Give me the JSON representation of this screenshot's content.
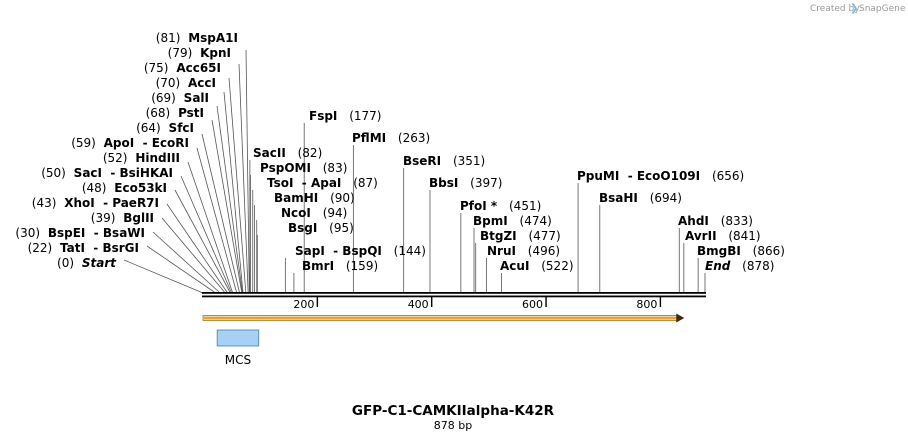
{
  "credit": {
    "prefix": "Created by",
    "brand": "SnapGene"
  },
  "colors": {
    "orf_fill": "#f2d296",
    "orf_stroke": "#a87a1e",
    "orf_arrow": "#e3901e",
    "feature_fill": "#a6d1f5",
    "feature_stroke": "#4a7fa8",
    "line": "#555555",
    "backbone": "#000000"
  },
  "ruler": {
    "total_bp": 878,
    "ticks": [
      "200",
      "400",
      "600",
      "800"
    ]
  },
  "sites": [
    {
      "name": "Start",
      "pos": "(0)",
      "bp": 0,
      "italic": true
    },
    {
      "name": "TatI  - BsrGI",
      "pos": "(22)",
      "bp": 22
    },
    {
      "name": "BspEI  - BsaWI",
      "pos": "(30)",
      "bp": 30
    },
    {
      "name": "BglII",
      "pos": "(39)",
      "bp": 39
    },
    {
      "name": "XhoI  - PaeR7I",
      "pos": "(43)",
      "bp": 43
    },
    {
      "name": "Eco53kI",
      "pos": "(48)",
      "bp": 48
    },
    {
      "name": "SacI  - BsiHKAI",
      "pos": "(50)",
      "bp": 50
    },
    {
      "name": "HindIII",
      "pos": "(52)",
      "bp": 52
    },
    {
      "name": "ApoI  - EcoRI",
      "pos": "(59)",
      "bp": 59
    },
    {
      "name": "SfcI",
      "pos": "(64)",
      "bp": 64
    },
    {
      "name": "PstI",
      "pos": "(68)",
      "bp": 68
    },
    {
      "name": "SalI",
      "pos": "(69)",
      "bp": 69
    },
    {
      "name": "AccI",
      "pos": "(70)",
      "bp": 70
    },
    {
      "name": "Acc65I",
      "pos": "(75)",
      "bp": 75
    },
    {
      "name": "KpnI",
      "pos": "(79)",
      "bp": 79
    },
    {
      "name": "MspA1I",
      "pos": "(81)",
      "bp": 81
    },
    {
      "name": "SacII",
      "pos": "(82)",
      "bp": 82
    },
    {
      "name": "PspOMI",
      "pos": "(83)",
      "bp": 83
    },
    {
      "name": "TsoI  - ApaI",
      "pos": "(87)",
      "bp": 87
    },
    {
      "name": "BamHI",
      "pos": "(90)",
      "bp": 90
    },
    {
      "name": "NcoI",
      "pos": "(94)",
      "bp": 94
    },
    {
      "name": "BsgI",
      "pos": "(95)",
      "bp": 95
    },
    {
      "name": "SapI  - BspQI",
      "pos": "(144)",
      "bp": 144
    },
    {
      "name": "BmrI",
      "pos": "(159)",
      "bp": 159
    },
    {
      "name": "FspI",
      "pos": "(177)",
      "bp": 177
    },
    {
      "name": "PflMI",
      "pos": "(263)",
      "bp": 263
    },
    {
      "name": "BseRI",
      "pos": "(351)",
      "bp": 351
    },
    {
      "name": "BbsI",
      "pos": "(397)",
      "bp": 397
    },
    {
      "name": "PfoI *",
      "pos": "(451)",
      "bp": 451
    },
    {
      "name": "BpmI",
      "pos": "(474)",
      "bp": 474
    },
    {
      "name": "BtgZI",
      "pos": "(477)",
      "bp": 477
    },
    {
      "name": "NruI",
      "pos": "(496)",
      "bp": 496
    },
    {
      "name": "AcuI",
      "pos": "(522)",
      "bp": 522
    },
    {
      "name": "PpuMI  - EcoO109I",
      "pos": "(656)",
      "bp": 656
    },
    {
      "name": "BsaHI",
      "pos": "(694)",
      "bp": 694
    },
    {
      "name": "AhdI",
      "pos": "(833)",
      "bp": 833
    },
    {
      "name": "AvrII",
      "pos": "(841)",
      "bp": 841
    },
    {
      "name": "BmgBI",
      "pos": "(866)",
      "bp": 866
    },
    {
      "name": "End",
      "pos": "(878)",
      "bp": 878,
      "italic": true
    }
  ],
  "features": [
    {
      "name": "MCS",
      "start_bp": 30,
      "end_bp": 94
    }
  ],
  "orf": {
    "start_bp": 0,
    "end_bp": 840
  },
  "plasmid": {
    "name": "GFP-C1-CAMKIIalpha-K42R",
    "length": "878 bp"
  }
}
